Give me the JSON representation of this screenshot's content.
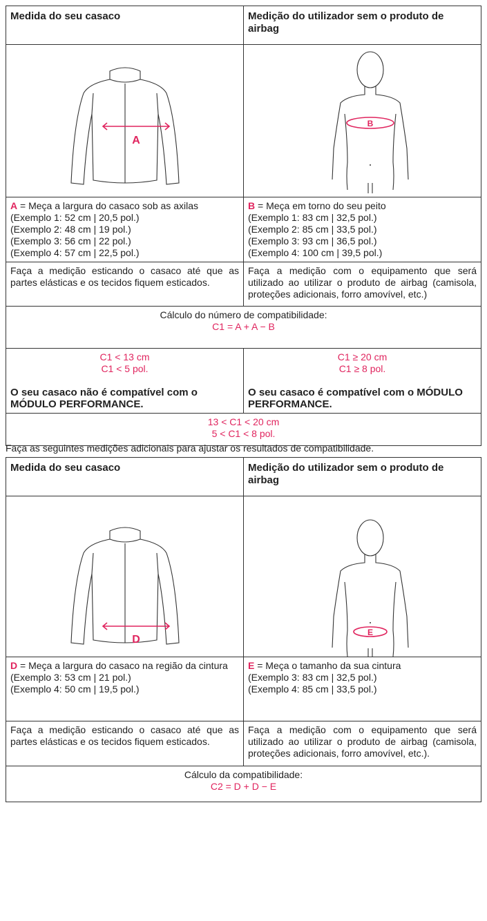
{
  "table1": {
    "header": [
      "Medida do seu casaco",
      "Medição do utilizador sem o produto de airbag"
    ],
    "figures": [
      {
        "label": "A"
      },
      {
        "label": "B"
      }
    ],
    "descriptions": [
      {
        "key": "A",
        "text": "= Meça a largura do casaco sob as axilas",
        "examples": [
          "(Exemplo 1: 52 cm | 20,5 pol.)",
          "(Exemplo 2: 48 cm | 19 pol.)",
          "(Exemplo 3: 56 cm | 22 pol.)",
          "(Exemplo 4: 57 cm | 22,5 pol.)"
        ]
      },
      {
        "key": "B",
        "text": "= Meça em torno do seu peito",
        "examples": [
          "(Exemplo 1: 83 cm | 32,5 pol.)",
          "(Exemplo 2: 85 cm | 33,5 pol.)",
          "(Exemplo 3: 93 cm | 36,5 pol.)",
          "(Exemplo 4: 100 cm | 39,5 pol.)"
        ]
      }
    ],
    "notes": [
      "Faça a medição esticando o casaco até que as partes elásticas e os tecidos fiquem esticados.",
      "Faça a medição com o equipamento que será utilizado ao utilizar o produto de airbag (camisola, proteções adicionais, forro amovível, etc.)"
    ],
    "calculation": {
      "title": "Cálculo do número de compatibilidade:",
      "formula": "C1 = A + A − B"
    },
    "results": [
      {
        "conditions": [
          "C1 < 13 cm",
          "C1 < 5 pol."
        ],
        "text": "O seu casaco não é compatível com o MÓDULO PERFORMANCE."
      },
      {
        "conditions": [
          "C1 ≥ 20 cm",
          "C1 ≥ 8 pol."
        ],
        "text": "O seu casaco é compatível com o MÓDULO PERFORMANCE."
      }
    ],
    "intermediate": [
      "13 < C1 < 20 cm",
      "5 < C1 < 8 pol."
    ]
  },
  "instruction": "Faça as seguintes medições adicionais para ajustar os resultados de compatibilidade.",
  "table2": {
    "header": [
      "Medida do seu casaco",
      "Medição do utilizador sem o produto de airbag"
    ],
    "figures": [
      {
        "label": "D"
      },
      {
        "label": "E"
      }
    ],
    "descriptions": [
      {
        "key": "D",
        "text": "= Meça a largura do casaco na região da cintura",
        "examples": [
          "(Exemplo 3: 53 cm | 21 pol.)",
          "(Exemplo 4: 50 cm | 19,5 pol.)"
        ]
      },
      {
        "key": "E",
        "text": "= Meça o tamanho da sua cintura",
        "examples": [
          "(Exemplo 3: 83 cm | 32,5 pol.)",
          "(Exemplo 4: 85 cm | 33,5 pol.)"
        ]
      }
    ],
    "notes": [
      "Faça a medição esticando o casaco até que as partes elásticas e os tecidos fiquem esticados.",
      "Faça a medição com o equipamento que será utilizado ao utilizar o produto de airbag (camisola, proteções adicionais, forro amovível, etc.)."
    ],
    "calculation": {
      "title": "Cálculo da compatibilidade:",
      "formula": "C2 = D + D − E"
    }
  }
}
